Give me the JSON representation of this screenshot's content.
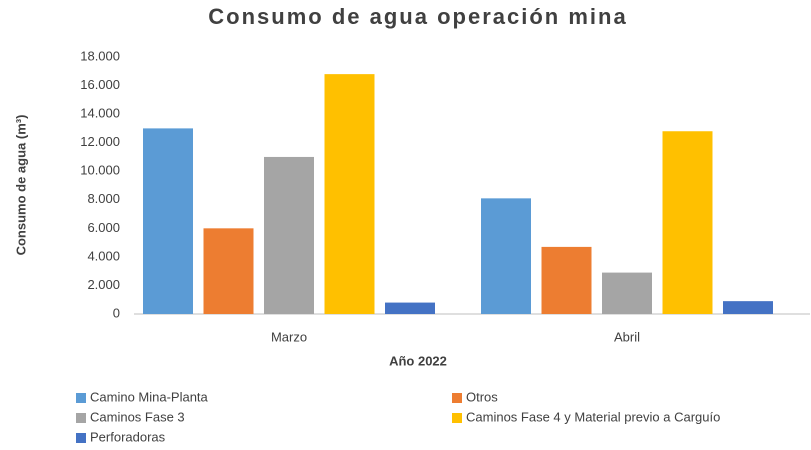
{
  "chart_data": {
    "type": "bar",
    "title": "Consumo de agua operación mina",
    "x_label": "Año 2022",
    "y_label": "Consumo de agua (m³)",
    "categories": [
      "Marzo",
      "Abril"
    ],
    "series": [
      {
        "name": "Camino Mina-Planta",
        "color": "#5b9bd5",
        "values": [
          13000,
          8100
        ]
      },
      {
        "name": "Otros",
        "color": "#ed7d31",
        "values": [
          6000,
          4700
        ]
      },
      {
        "name": "Caminos Fase 3",
        "color": "#a5a5a5",
        "values": [
          11000,
          2900
        ]
      },
      {
        "name": "Caminos Fase 4 y Material previo a Carguío",
        "color": "#ffc000",
        "values": [
          16800,
          12800
        ]
      },
      {
        "name": "Perforadoras",
        "color": "#4472c4",
        "values": [
          800,
          900
        ]
      }
    ],
    "ylim": [
      0,
      18000
    ],
    "yticks": [
      0,
      {
        "value": 2000,
        "label": "2.000"
      },
      {
        "value": 4000,
        "label": "4.000"
      },
      {
        "value": 6000,
        "label": "6.000"
      },
      {
        "value": 8000,
        "label": "8.000"
      },
      {
        "value": 10000,
        "label": "10.000"
      },
      {
        "value": 12000,
        "label": "12.000"
      },
      {
        "value": 14000,
        "label": "14.000"
      },
      {
        "value": 16000,
        "label": "16.000"
      },
      {
        "value": 18000,
        "label": "18.000"
      }
    ],
    "grid": false,
    "legend": "bottom"
  }
}
